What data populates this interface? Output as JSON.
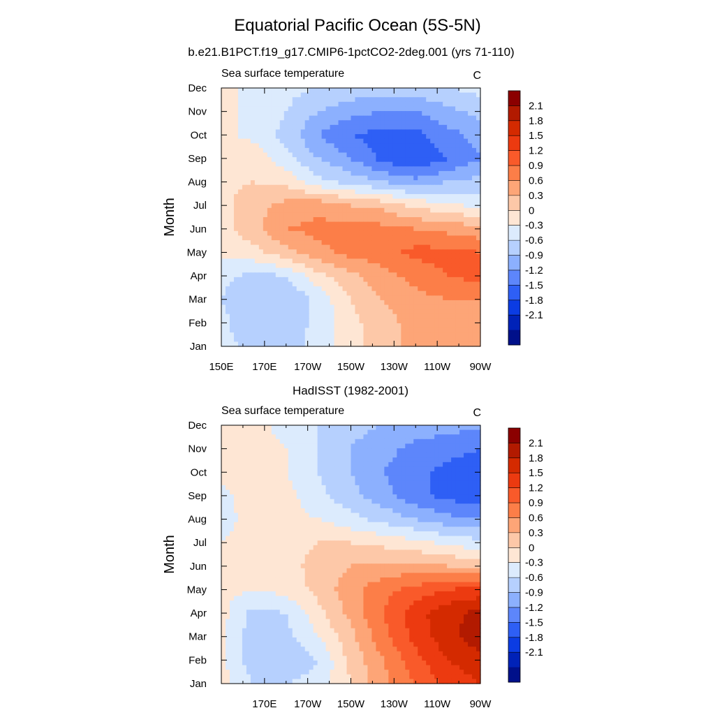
{
  "page": {
    "title": "Equatorial Pacific Ocean (5S-5N)"
  },
  "colorbar": {
    "labels": [
      "2.1",
      "1.8",
      "1.5",
      "1.2",
      "0.9",
      "0.6",
      "0.3",
      "0",
      "-0.3",
      "-0.6",
      "-0.9",
      "-1.2",
      "-1.5",
      "-1.8",
      "-2.1"
    ],
    "colors": [
      "#8b0000",
      "#b21a00",
      "#d42a00",
      "#ec3a10",
      "#f95a2a",
      "#fc7e48",
      "#fda577",
      "#fdc8a8",
      "#fee6d4",
      "#dcebfd",
      "#b6d0fe",
      "#8cb0fe",
      "#5d86fb",
      "#2e5ff5",
      "#0b3ce3",
      "#0022b8",
      "#00108a"
    ]
  },
  "chart_data": [
    {
      "type": "heatmap",
      "title": "b.e21.B1PCT.f19_g17.CMIP6-1pctCO2-2deg.001 (yrs 71-110)",
      "left_string": "Sea surface temperature",
      "right_string": "C",
      "ylabel": "Month",
      "y_ticks": [
        "Jan",
        "Feb",
        "Mar",
        "Apr",
        "May",
        "Jun",
        "Jul",
        "Aug",
        "Sep",
        "Oct",
        "Nov",
        "Dec"
      ],
      "x_ticks": [
        "150E",
        "170E",
        "170W",
        "150W",
        "130W",
        "110W",
        "90W"
      ],
      "x_range": [
        150,
        270
      ],
      "levels": [
        -2.1,
        -1.8,
        -1.5,
        -1.2,
        -0.9,
        -0.6,
        -0.3,
        0,
        0.3,
        0.6,
        0.9,
        1.2,
        1.5,
        1.8,
        2.1
      ],
      "values": [
        [
          -0.2,
          -0.4,
          -0.4,
          -0.2,
          0.2,
          0.5,
          0.7,
          0.7,
          0.7
        ],
        [
          -0.2,
          -0.6,
          -0.5,
          -0.2,
          0.2,
          0.5,
          0.7,
          0.8,
          0.8
        ],
        [
          -0.3,
          -0.6,
          -0.6,
          -0.2,
          0.3,
          0.6,
          0.8,
          0.9,
          0.9
        ],
        [
          -0.2,
          -0.4,
          -0.3,
          0.2,
          0.5,
          0.8,
          1.0,
          1.2,
          1.3
        ],
        [
          0.1,
          0.2,
          0.5,
          0.8,
          1.0,
          1.1,
          1.3,
          1.3,
          1.2
        ],
        [
          0.2,
          0.5,
          0.9,
          1.0,
          1.0,
          1.0,
          0.9,
          0.8,
          0.7
        ],
        [
          0.2,
          0.5,
          0.7,
          0.8,
          0.6,
          0.5,
          0.2,
          0.1,
          -0.1
        ],
        [
          0.2,
          0.3,
          0.2,
          -0.2,
          -0.4,
          -0.6,
          -0.8,
          -0.6,
          -0.5
        ],
        [
          0.2,
          0.2,
          -0.2,
          -0.6,
          -0.9,
          -1.3,
          -1.5,
          -1.2,
          -0.9
        ],
        [
          0.1,
          -0.1,
          -0.4,
          -0.9,
          -1.2,
          -1.3,
          -1.3,
          -1.0,
          -0.8
        ],
        [
          0.1,
          -0.1,
          -0.3,
          -0.6,
          -0.8,
          -0.9,
          -0.9,
          -0.7,
          -0.5
        ],
        [
          0.1,
          -0.1,
          -0.2,
          -0.3,
          -0.4,
          -0.4,
          -0.4,
          -0.3,
          -0.2
        ]
      ]
    },
    {
      "type": "heatmap",
      "title": "HadISST (1982-2001)",
      "left_string": "Sea surface temperature",
      "right_string": "C",
      "ylabel": "Month",
      "y_ticks": [
        "Jan",
        "Feb",
        "Mar",
        "Apr",
        "May",
        "Jun",
        "Jul",
        "Aug",
        "Sep",
        "Oct",
        "Nov",
        "Dec"
      ],
      "x_ticks": [
        "170E",
        "170W",
        "150W",
        "130W",
        "110W",
        "90W"
      ],
      "x_range": [
        150,
        270
      ],
      "levels": [
        -2.1,
        -1.8,
        -1.5,
        -1.2,
        -0.9,
        -0.6,
        -0.3,
        0,
        0.3,
        0.6,
        0.9,
        1.2,
        1.5,
        1.8,
        2.1
      ],
      "values": [
        [
          0.1,
          -0.3,
          -0.3,
          -0.2,
          0.3,
          0.8,
          1.2,
          1.6,
          1.8
        ],
        [
          0.1,
          -0.5,
          -0.5,
          -0.3,
          0.4,
          0.9,
          1.4,
          1.8,
          2.0
        ],
        [
          0.1,
          -0.5,
          -0.4,
          0.0,
          0.5,
          1.1,
          1.6,
          2.0,
          2.3
        ],
        [
          0.1,
          -0.4,
          -0.3,
          0.2,
          0.7,
          1.2,
          1.7,
          2.0,
          2.2
        ],
        [
          0.1,
          0.0,
          0.1,
          0.4,
          0.8,
          1.1,
          1.3,
          1.5,
          1.6
        ],
        [
          0.1,
          0.1,
          0.2,
          0.4,
          0.6,
          0.7,
          0.7,
          0.6,
          0.5
        ],
        [
          0.0,
          0.1,
          0.2,
          0.3,
          0.3,
          0.2,
          0.1,
          -0.1,
          -0.2
        ],
        [
          -0.1,
          0.1,
          0.1,
          0.0,
          -0.2,
          -0.4,
          -0.6,
          -0.8,
          -0.9
        ],
        [
          -0.1,
          0.2,
          0.1,
          -0.2,
          -0.5,
          -0.8,
          -1.1,
          -1.3,
          -1.4
        ],
        [
          0.1,
          0.2,
          0.0,
          -0.3,
          -0.6,
          -0.9,
          -1.1,
          -1.3,
          -1.4
        ],
        [
          0.1,
          0.1,
          0.0,
          -0.3,
          -0.6,
          -0.8,
          -1.0,
          -1.1,
          -1.2
        ],
        [
          0.1,
          0.1,
          -0.1,
          -0.3,
          -0.5,
          -0.6,
          -0.7,
          -0.8,
          -0.8
        ]
      ]
    }
  ]
}
